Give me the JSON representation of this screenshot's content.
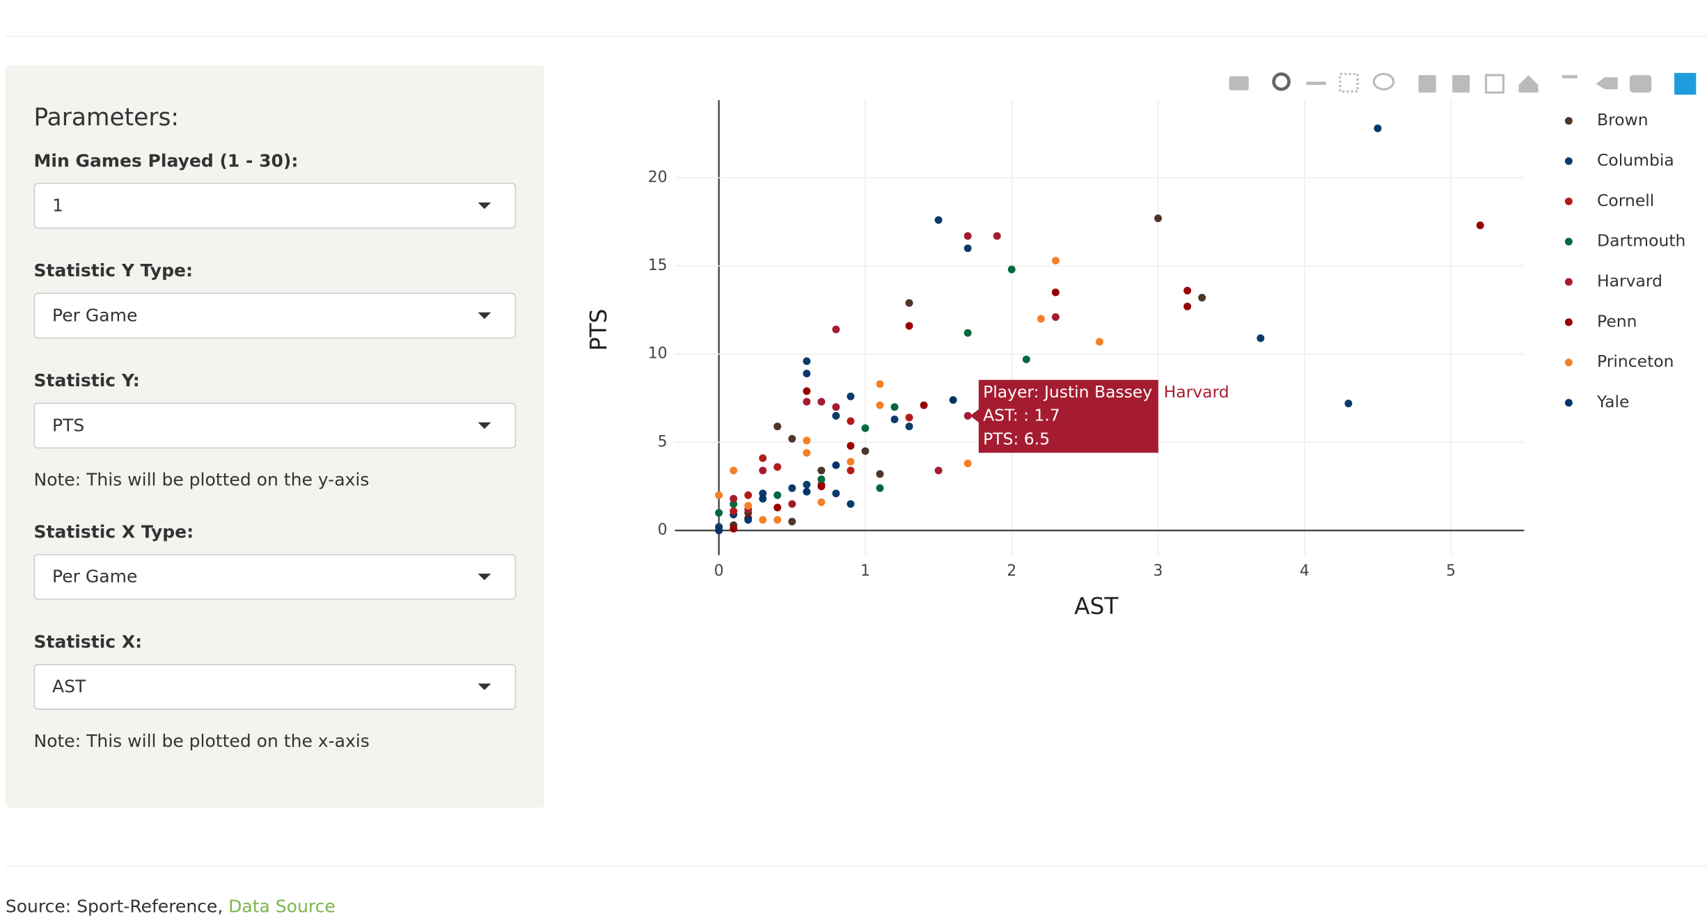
{
  "sidebar": {
    "title": "Parameters:",
    "items": [
      {
        "label": "Min Games Played (1 - 30):",
        "value": "1"
      },
      {
        "label": "Statistic Y Type:",
        "value": "Per Game"
      },
      {
        "label": "Statistic Y:",
        "value": "PTS",
        "note": "Note: This will be plotted on the y-axis"
      },
      {
        "label": "Statistic X Type:",
        "value": "Per Game"
      },
      {
        "label": "Statistic X:",
        "value": "AST",
        "note": "Note: This will be plotted on the x-axis"
      }
    ]
  },
  "chart_data": {
    "type": "scatter",
    "x_label": "AST",
    "y_label": "PTS",
    "xlim": [
      -0.3,
      5.5
    ],
    "ylim": [
      -1.4,
      24.4
    ],
    "xticks": [
      0,
      1,
      2,
      3,
      4,
      5
    ],
    "yticks": [
      0,
      5,
      10,
      15,
      20
    ],
    "grid": true,
    "zeroline": true,
    "legend": "right",
    "series": [
      {
        "name": "Brown",
        "color": "#4e3629",
        "x": [
          3.0,
          3.3,
          1.3,
          0.4,
          0.5,
          1.0,
          0.7,
          1.1,
          0.5,
          0.2,
          0.1
        ],
        "values": [
          17.7,
          13.2,
          12.9,
          5.9,
          5.2,
          4.5,
          3.4,
          3.2,
          0.5,
          1.0,
          0.3
        ]
      },
      {
        "name": "Columbia",
        "color": "#0b3a6b",
        "x": [
          1.5,
          1.7,
          3.7,
          4.3,
          0.6,
          0.6,
          0.9,
          0.8,
          1.2,
          1.3,
          0.6,
          0.5,
          0.9,
          0.3,
          0.1,
          0.0,
          0.8
        ],
        "values": [
          17.6,
          16.0,
          10.9,
          7.2,
          9.6,
          8.9,
          7.6,
          6.5,
          6.3,
          5.9,
          2.6,
          2.4,
          1.5,
          2.1,
          0.9,
          0.2,
          2.1
        ]
      },
      {
        "name": "Cornell",
        "color": "#b31b1b",
        "x": [
          1.3,
          0.9,
          0.4,
          0.2,
          0.1,
          0.3,
          0.7,
          0.9
        ],
        "values": [
          6.4,
          6.2,
          3.6,
          2.0,
          1.1,
          4.1,
          2.6,
          3.4
        ]
      },
      {
        "name": "Dartmouth",
        "color": "#00693e",
        "x": [
          2.0,
          1.7,
          2.1,
          1.2,
          1.0,
          1.1,
          0.7,
          0.4,
          0.0,
          0.1
        ],
        "values": [
          14.8,
          11.2,
          9.7,
          7.0,
          5.8,
          2.4,
          2.9,
          2.0,
          1.0,
          1.5
        ]
      },
      {
        "name": "Harvard",
        "color": "#a51c30",
        "x": [
          1.7,
          1.9,
          2.3,
          0.8,
          1.7,
          1.5,
          0.6,
          0.7,
          0.8,
          0.3,
          0.5,
          0.2,
          0.1
        ],
        "values": [
          16.7,
          16.7,
          12.1,
          11.4,
          6.5,
          3.4,
          7.3,
          7.3,
          7.0,
          3.4,
          1.5,
          1.2,
          1.8
        ]
      },
      {
        "name": "Penn",
        "color": "#990000",
        "x": [
          5.2,
          2.3,
          3.2,
          3.2,
          1.3,
          0.6,
          1.4,
          0.9,
          0.7,
          0.4,
          0.2,
          0.0,
          0.1
        ],
        "values": [
          17.3,
          13.5,
          13.6,
          12.7,
          11.6,
          7.9,
          7.1,
          4.8,
          2.5,
          1.3,
          0.7,
          0.0,
          0.1
        ]
      },
      {
        "name": "Princeton",
        "color": "#f58025",
        "x": [
          2.3,
          2.2,
          2.6,
          1.1,
          1.1,
          0.6,
          0.6,
          1.7,
          0.9,
          0.7,
          0.0,
          0.1,
          0.3,
          0.4,
          0.2
        ],
        "values": [
          15.3,
          12.0,
          10.7,
          8.3,
          7.1,
          5.1,
          4.4,
          3.8,
          3.9,
          1.6,
          2.0,
          3.4,
          0.6,
          0.6,
          1.4
        ]
      },
      {
        "name": "Yale",
        "color": "#00356b",
        "x": [
          4.5,
          1.6,
          0.8,
          0.3,
          0.6,
          0.2,
          0.0
        ],
        "values": [
          22.8,
          7.4,
          3.7,
          1.8,
          2.2,
          0.6,
          0.0
        ]
      }
    ]
  },
  "tooltip": {
    "trace": "Harvard",
    "lines": [
      "Player: Justin Bassey",
      "AST: : 1.7",
      "PTS: 6.5"
    ]
  },
  "footer": {
    "text": "Source: Sport-Reference,",
    "link": "Data Source"
  }
}
